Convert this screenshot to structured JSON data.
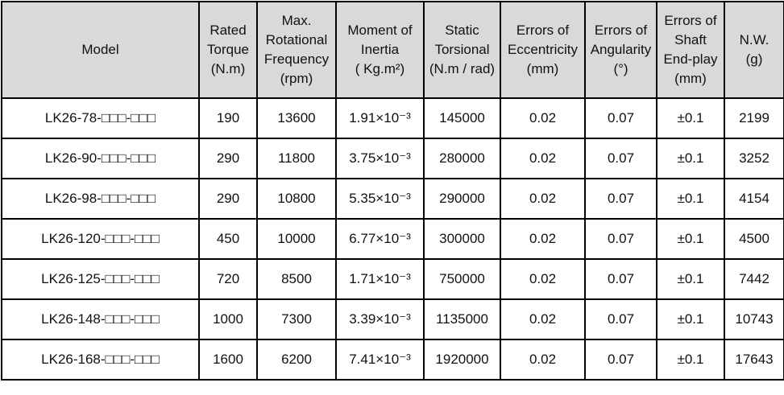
{
  "table": {
    "header": [
      [
        "Model"
      ],
      [
        "Rated",
        "Torque",
        "(N.m)"
      ],
      [
        "Max.",
        "Rotational",
        "Frequency",
        "(rpm)"
      ],
      [
        "Moment of",
        "Inertia",
        "( Kg.m²)"
      ],
      [
        "Static",
        "Torsional",
        "(N.m / rad)"
      ],
      [
        "Errors of",
        "Eccentricity",
        "(mm)"
      ],
      [
        "Errors of",
        "Angularity",
        "(°)"
      ],
      [
        "Errors of",
        "Shaft",
        "End-play",
        "(mm)"
      ],
      [
        "N.W.",
        "(g)"
      ]
    ],
    "rows": [
      [
        "LK26-78-□□□-□□□",
        "190",
        "13600",
        "1.91×10⁻³",
        "145000",
        "0.02",
        "0.07",
        "±0.1",
        "2199"
      ],
      [
        "LK26-90-□□□-□□□",
        "290",
        "11800",
        "3.75×10⁻³",
        "280000",
        "0.02",
        "0.07",
        "±0.1",
        "3252"
      ],
      [
        "LK26-98-□□□-□□□",
        "290",
        "10800",
        "5.35×10⁻³",
        "290000",
        "0.02",
        "0.07",
        "±0.1",
        "4154"
      ],
      [
        "LK26-120-□□□-□□□",
        "450",
        "10000",
        "6.77×10⁻³",
        "300000",
        "0.02",
        "0.07",
        "±0.1",
        "4500"
      ],
      [
        "LK26-125-□□□-□□□",
        "720",
        "8500",
        "1.71×10⁻³",
        "750000",
        "0.02",
        "0.07",
        "±0.1",
        "7442"
      ],
      [
        "LK26-148-□□□-□□□",
        "1000",
        "7300",
        "3.39×10⁻³",
        "1135000",
        "0.02",
        "0.07",
        "±0.1",
        "10743"
      ],
      [
        "LK26-168-□□□-□□□",
        "1600",
        "6200",
        "7.41×10⁻³",
        "1920000",
        "0.02",
        "0.07",
        "±0.1",
        "17643"
      ]
    ]
  }
}
